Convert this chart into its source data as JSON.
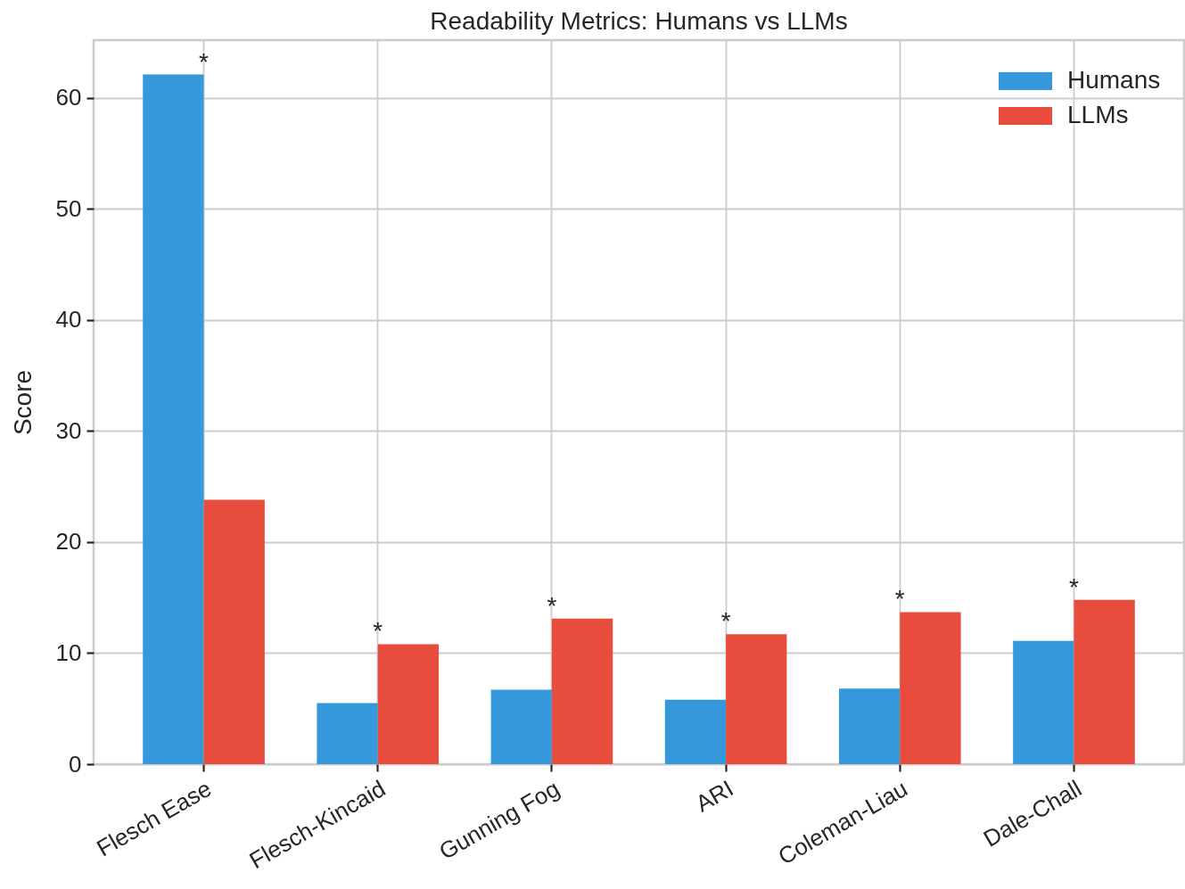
{
  "chart_data": {
    "type": "bar",
    "title": "Readability Metrics: Humans vs LLMs",
    "ylabel": "Score",
    "categories": [
      "Flesch Ease",
      "Flesch-Kincaid",
      "Gunning Fog",
      "ARI",
      "Coleman-Liau",
      "Dale-Chall"
    ],
    "series": [
      {
        "name": "Humans",
        "color": "#3498db",
        "values": [
          62.1,
          5.5,
          6.7,
          5.8,
          6.8,
          11.1
        ]
      },
      {
        "name": "LLMs",
        "color": "#e74c3c",
        "values": [
          23.8,
          10.8,
          13.1,
          11.7,
          13.7,
          14.8
        ]
      }
    ],
    "ylim": [
      0,
      65.2
    ],
    "yticks": [
      0,
      10,
      20,
      30,
      40,
      50,
      60
    ],
    "grid": true,
    "legend": "top right",
    "annotations": [
      {
        "text": "*",
        "x": "Flesch Ease",
        "y": 62.1
      },
      {
        "text": "*",
        "x": "Flesch-Kincaid",
        "y": 10.8
      },
      {
        "text": "*",
        "x": "Gunning Fog",
        "y": 13.1
      },
      {
        "text": "*",
        "x": "ARI",
        "y": 11.7
      },
      {
        "text": "*",
        "x": "Coleman-Liau",
        "y": 13.7
      },
      {
        "text": "*",
        "x": "Dale-Chall",
        "y": 14.8
      }
    ]
  }
}
